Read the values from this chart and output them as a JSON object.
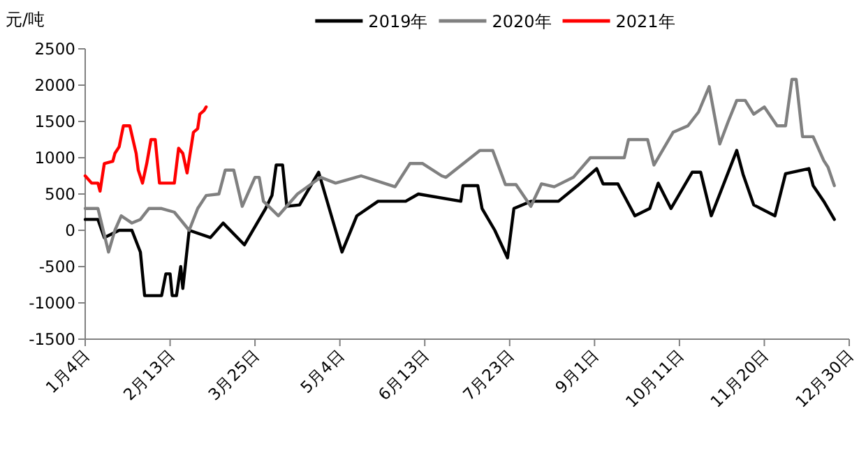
{
  "chart_data": {
    "type": "line",
    "ylabel": "元/吨",
    "legend": "top",
    "grid": false,
    "marker": "none",
    "line_style": "solid",
    "xlim": [
      "--01-04",
      "--12-30"
    ],
    "xticks": [
      {
        "value": "--01-04",
        "label": "1月4日"
      },
      {
        "value": "--02-13",
        "label": "2月13日"
      },
      {
        "value": "--03-25",
        "label": "3月25日"
      },
      {
        "value": "--05-04",
        "label": "5月4日"
      },
      {
        "value": "--06-13",
        "label": "6月13日"
      },
      {
        "value": "--07-23",
        "label": "7月23日"
      },
      {
        "value": "--09-01",
        "label": "9月1日"
      },
      {
        "value": "--10-11",
        "label": "10月11日"
      },
      {
        "value": "--11-20",
        "label": "11月20日"
      },
      {
        "value": "--12-30",
        "label": "12月30日"
      }
    ],
    "ylim": [
      -1500,
      2500
    ],
    "yticks": [
      -1500,
      -1000,
      -500,
      0,
      500,
      1000,
      1500,
      2000,
      2500
    ],
    "series": [
      {
        "name": "2019年",
        "color": "#000000",
        "x": [
          "--01-04",
          "--01-10",
          "--01-13",
          "--01-20",
          "--01-26",
          "--01-30",
          "--02-01",
          "--02-09",
          "--02-11",
          "--02-13",
          "--02-14",
          "--02-16",
          "--02-18",
          "--02-19",
          "--02-22",
          "--03-04",
          "--03-10",
          "--03-20",
          "--03-30",
          "--04-02",
          "--04-04",
          "--04-07",
          "--04-09",
          "--04-15",
          "--04-24",
          "--04-27",
          "--05-05",
          "--05-12",
          "--05-22",
          "--06-04",
          "--06-10",
          "--06-30",
          "--07-01",
          "--07-08",
          "--07-10",
          "--07-16",
          "--07-22",
          "--07-25",
          "--08-02",
          "--08-15",
          "--08-24",
          "--09-02",
          "--09-05",
          "--09-12",
          "--09-20",
          "--09-27",
          "--10-01",
          "--10-07",
          "--10-17",
          "--10-21",
          "--10-26",
          "--11-07",
          "--11-10",
          "--11-15",
          "--11-25",
          "--11-30",
          "--12-11",
          "--12-13",
          "--12-18",
          "--12-23"
        ],
        "values": [
          150,
          150,
          -100,
          0,
          0,
          -300,
          -900,
          -900,
          -600,
          -600,
          -900,
          -900,
          -500,
          -800,
          0,
          -100,
          100,
          -200,
          300,
          480,
          900,
          900,
          330,
          350,
          800,
          500,
          -300,
          200,
          400,
          400,
          500,
          400,
          615,
          615,
          300,
          0,
          -380,
          300,
          400,
          400,
          615,
          850,
          640,
          640,
          200,
          300,
          650,
          300,
          800,
          800,
          200,
          1100,
          770,
          350,
          200,
          780,
          850,
          615,
          400,
          150
        ]
      },
      {
        "name": "2020年",
        "color": "#808080",
        "x": [
          "--01-04",
          "--01-10",
          "--01-15",
          "--01-18",
          "--01-21",
          "--01-26",
          "--01-30",
          "--02-03",
          "--02-09",
          "--02-15",
          "--02-22",
          "--02-26",
          "--03-02",
          "--03-08",
          "--03-11",
          "--03-15",
          "--03-19",
          "--03-25",
          "--03-27",
          "--03-29",
          "--04-05",
          "--04-14",
          "--04-25",
          "--05-02",
          "--05-14",
          "--05-30",
          "--06-06",
          "--06-12",
          "--06-21",
          "--06-23",
          "--07-09",
          "--07-15",
          "--07-21",
          "--07-26",
          "--08-02",
          "--08-07",
          "--08-13",
          "--08-22",
          "--08-30",
          "--09-15",
          "--09-17",
          "--09-26",
          "--09-29",
          "--10-08",
          "--10-15",
          "--10-20",
          "--10-25",
          "--10-30",
          "--11-03",
          "--11-07",
          "--11-11",
          "--11-15",
          "--11-20",
          "--11-26",
          "--11-30",
          "--12-03",
          "--12-05",
          "--12-08",
          "--12-13",
          "--12-18",
          "--12-20",
          "--12-23"
        ],
        "values": [
          300,
          300,
          -300,
          0,
          200,
          100,
          150,
          300,
          300,
          250,
          0,
          300,
          480,
          500,
          830,
          830,
          330,
          730,
          730,
          400,
          200,
          500,
          730,
          650,
          750,
          600,
          920,
          920,
          750,
          730,
          1100,
          1100,
          630,
          630,
          330,
          640,
          600,
          730,
          1000,
          1000,
          1250,
          1250,
          900,
          1350,
          1440,
          1630,
          1980,
          1190,
          1500,
          1790,
          1790,
          1600,
          1700,
          1440,
          1440,
          2080,
          2080,
          1290,
          1290,
          960,
          870,
          615
        ]
      },
      {
        "name": "2021年",
        "color": "#ff0000",
        "x": [
          "--01-04",
          "--01-07",
          "--01-10",
          "--01-11",
          "--01-13",
          "--01-17",
          "--01-18",
          "--01-20",
          "--01-21",
          "--01-22",
          "--01-25",
          "--01-28",
          "--01-29",
          "--01-31",
          "--02-02",
          "--02-04",
          "--02-06",
          "--02-08",
          "--02-15",
          "--02-17",
          "--02-19",
          "--02-21",
          "--02-24",
          "--02-26",
          "--02-27",
          "--03-01",
          "--03-02"
        ],
        "values": [
          750,
          650,
          650,
          540,
          920,
          950,
          1060,
          1150,
          1300,
          1440,
          1440,
          1060,
          830,
          650,
          920,
          1250,
          1250,
          650,
          650,
          1130,
          1060,
          790,
          1350,
          1400,
          1600,
          1650,
          1700
        ]
      }
    ]
  }
}
